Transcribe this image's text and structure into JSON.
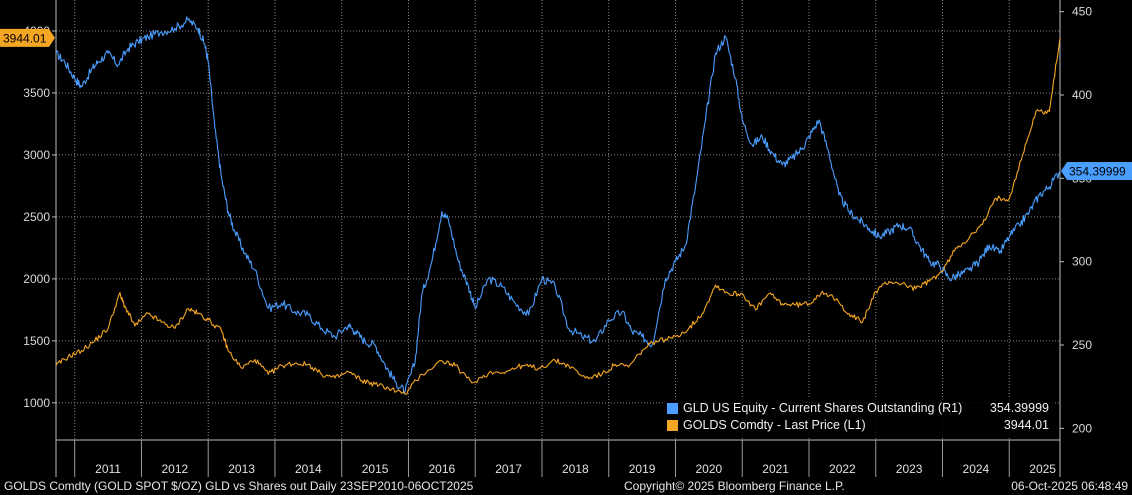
{
  "chart_data": {
    "type": "line",
    "title": "GOLDS Comdty (GOLD SPOT $/OZ) GLD vs Shares out Daily 23SEP2010-06OCT2025",
    "x_categories": [
      "2011",
      "2012",
      "2013",
      "2014",
      "2015",
      "2016",
      "2017",
      "2018",
      "2019",
      "2020",
      "2021",
      "2022",
      "2023",
      "2024",
      "2025"
    ],
    "x_range": [
      2010.72,
      2025.76
    ],
    "left_axis": {
      "ticks": [
        1000,
        1500,
        2000,
        2500,
        3000,
        3500,
        4000
      ],
      "range": [
        700,
        4250
      ]
    },
    "right_axis": {
      "ticks": [
        200,
        250,
        300,
        350,
        400,
        450
      ],
      "range": [
        193,
        457
      ]
    },
    "series": [
      {
        "name": "GOLDS Comdty - Last Price (L1)",
        "axis": "left",
        "color": "#f5a623",
        "last_value": "3944.01",
        "x": [
          2010.72,
          2010.9,
          2011.1,
          2011.3,
          2011.5,
          2011.67,
          2011.75,
          2011.9,
          2012.1,
          2012.3,
          2012.5,
          2012.7,
          2012.85,
          2013.0,
          2013.2,
          2013.3,
          2013.5,
          2013.7,
          2013.9,
          2014.1,
          2014.3,
          2014.5,
          2014.7,
          2014.9,
          2015.1,
          2015.3,
          2015.5,
          2015.7,
          2015.95,
          2016.2,
          2016.5,
          2016.7,
          2016.95,
          2017.2,
          2017.5,
          2017.7,
          2017.95,
          2018.2,
          2018.4,
          2018.65,
          2018.9,
          2019.1,
          2019.3,
          2019.5,
          2019.7,
          2019.95,
          2020.2,
          2020.4,
          2020.6,
          2020.8,
          2021.0,
          2021.2,
          2021.4,
          2021.6,
          2021.8,
          2022.0,
          2022.2,
          2022.4,
          2022.6,
          2022.8,
          2023.0,
          2023.2,
          2023.4,
          2023.6,
          2023.8,
          2024.0,
          2024.2,
          2024.4,
          2024.6,
          2024.8,
          2025.0,
          2025.2,
          2025.4,
          2025.6,
          2025.76
        ],
        "values": [
          1300,
          1370,
          1420,
          1500,
          1600,
          1880,
          1780,
          1620,
          1720,
          1650,
          1600,
          1760,
          1720,
          1670,
          1580,
          1420,
          1280,
          1350,
          1230,
          1300,
          1320,
          1310,
          1230,
          1200,
          1250,
          1180,
          1150,
          1120,
          1070,
          1230,
          1340,
          1300,
          1160,
          1240,
          1260,
          1300,
          1280,
          1340,
          1300,
          1200,
          1230,
          1310,
          1290,
          1420,
          1500,
          1520,
          1600,
          1720,
          1950,
          1880,
          1880,
          1750,
          1880,
          1800,
          1790,
          1800,
          1900,
          1830,
          1720,
          1650,
          1900,
          1980,
          1960,
          1920,
          1980,
          2060,
          2250,
          2330,
          2440,
          2650,
          2650,
          3000,
          3350,
          3350,
          3944
        ]
      },
      {
        "name": "GLD US Equity - Current Shares Outstanding (R1)",
        "axis": "right",
        "color": "#4a9eff",
        "last_value": "354.39999",
        "x": [
          2010.72,
          2010.85,
          2011.0,
          2011.1,
          2011.25,
          2011.35,
          2011.5,
          2011.65,
          2011.8,
          2011.95,
          2012.1,
          2012.3,
          2012.5,
          2012.7,
          2012.85,
          2012.95,
          2013.0,
          2013.1,
          2013.2,
          2013.3,
          2013.4,
          2013.55,
          2013.7,
          2013.9,
          2014.1,
          2014.3,
          2014.5,
          2014.7,
          2014.9,
          2015.1,
          2015.2,
          2015.35,
          2015.5,
          2015.65,
          2015.8,
          2015.95,
          2016.1,
          2016.2,
          2016.35,
          2016.5,
          2016.6,
          2016.75,
          2016.9,
          2017.0,
          2017.2,
          2017.4,
          2017.6,
          2017.8,
          2018.0,
          2018.2,
          2018.4,
          2018.6,
          2018.8,
          2019.0,
          2019.2,
          2019.35,
          2019.5,
          2019.65,
          2019.85,
          2020.0,
          2020.15,
          2020.3,
          2020.45,
          2020.6,
          2020.75,
          2020.9,
          2021.0,
          2021.15,
          2021.3,
          2021.45,
          2021.6,
          2021.75,
          2021.9,
          2022.0,
          2022.15,
          2022.3,
          2022.45,
          2022.6,
          2022.75,
          2022.9,
          2023.05,
          2023.2,
          2023.35,
          2023.5,
          2023.65,
          2023.8,
          2023.95,
          2024.1,
          2024.25,
          2024.4,
          2024.55,
          2024.7,
          2024.85,
          2025.0,
          2025.15,
          2025.3,
          2025.45,
          2025.6,
          2025.76
        ],
        "values": [
          425,
          420,
          410,
          405,
          415,
          420,
          425,
          418,
          428,
          432,
          435,
          438,
          440,
          445,
          440,
          430,
          420,
          380,
          350,
          330,
          318,
          305,
          295,
          272,
          275,
          270,
          268,
          260,
          255,
          262,
          258,
          252,
          250,
          238,
          228,
          222,
          240,
          280,
          300,
          330,
          325,
          300,
          285,
          272,
          290,
          285,
          275,
          268,
          290,
          285,
          260,
          255,
          252,
          265,
          270,
          258,
          255,
          250,
          290,
          300,
          310,
          345,
          385,
          425,
          435,
          410,
          385,
          370,
          375,
          365,
          358,
          362,
          368,
          375,
          385,
          365,
          340,
          330,
          325,
          320,
          315,
          318,
          322,
          320,
          310,
          300,
          298,
          290,
          292,
          295,
          300,
          310,
          305,
          315,
          322,
          330,
          340,
          345,
          354.4
        ]
      }
    ]
  },
  "legend": {
    "items": [
      {
        "label": "GLD US Equity - Current Shares Outstanding (R1)",
        "value": "354.39999",
        "color": "#4a9eff"
      },
      {
        "label": "GOLDS Comdty - Last Price (L1)",
        "value": "3944.01",
        "color": "#f5a623"
      }
    ]
  },
  "tags": {
    "left_last": "3944.01",
    "right_last": "354.39999"
  },
  "footer": {
    "left": "GOLDS Comdty (GOLD SPOT $/OZ) GLD vs Shares out Daily 23SEP2010-06OCT2025",
    "center": "Copyright© 2025 Bloomberg Finance L.P.",
    "right": "06-Oct-2025 06:48:49"
  }
}
